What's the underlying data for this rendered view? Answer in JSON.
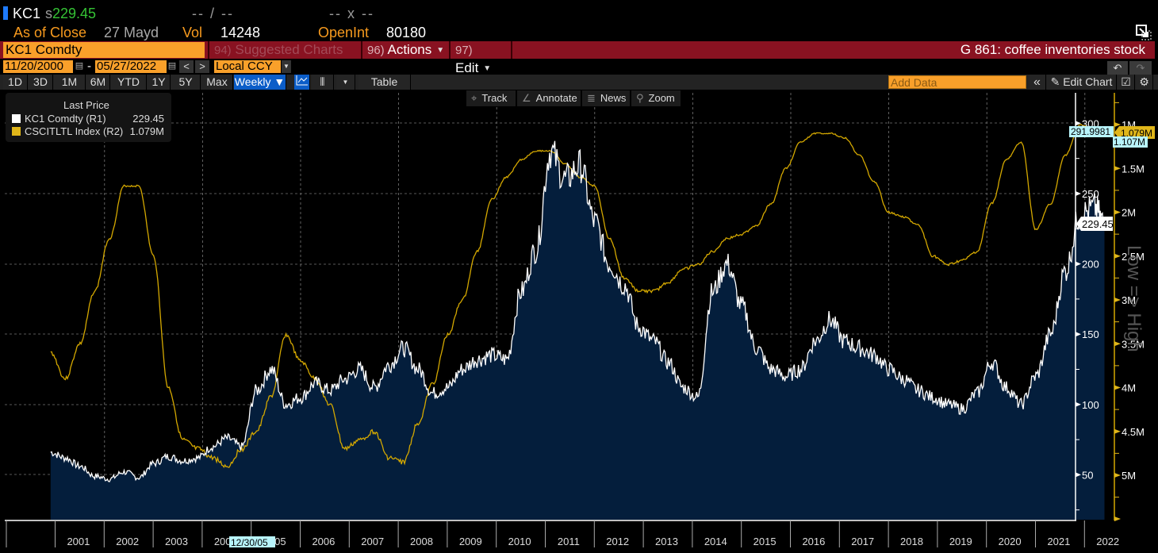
{
  "header": {
    "ticker": "KC1",
    "last_prefix": "s",
    "last_price": "229.45",
    "bid_ask": "-- / --",
    "size": "-- x --",
    "as_of_label": "As of Close",
    "as_of_date": "27 Mayd",
    "vol_label": "Vol",
    "vol_value": "14248",
    "openint_label": "OpenInt",
    "openint_value": "80180"
  },
  "command_bar": {
    "security": "KC1 Comdty",
    "suggested_num": "94)",
    "suggested_label": "Suggested Charts",
    "actions_num": "96)",
    "actions_label": "Actions",
    "edit_num": "97)",
    "edit_label": "Edit",
    "chart_title": "G 861: coffee inventories stock"
  },
  "date_row": {
    "start_date": "11/20/2000",
    "separator": "-",
    "end_date": "05/27/2022",
    "prev": "<",
    "next": ">",
    "currency": "Local CCY"
  },
  "toolbar": {
    "periods": [
      "1D",
      "3D",
      "1M",
      "6M",
      "YTD",
      "1Y",
      "5Y",
      "Max"
    ],
    "frequency": "Weekly ▼",
    "table_label": "Table",
    "add_data_placeholder": "Add Data",
    "edit_chart_label": "Edit Chart",
    "collapse": "«"
  },
  "chart_tools": {
    "track": "Track",
    "annotate": "Annotate",
    "news": "News",
    "zoom": "Zoom"
  },
  "legend": {
    "title": "Last Price",
    "items": [
      {
        "name": "KC1 Comdty  (R1)",
        "value": "229.45",
        "color": "#ffffff"
      },
      {
        "name": "CSCITLTL Index  (R2)",
        "value": "1.079M",
        "color": "#e0b61a"
      }
    ]
  },
  "side_label": "Low => High",
  "crosshair_date": "12/30/05",
  "colors": {
    "price_line": "#ffffff",
    "price_fill": "#041e3c",
    "inventory_line": "#d4a800",
    "accent_orange": "#f9a02a",
    "command_red": "#891221",
    "cyan_tag": "#b8f4fb"
  },
  "chart_data": {
    "type": "line",
    "title": "G 861: coffee inventories stock",
    "xlabel": "",
    "x_tick_labels": [
      "2001",
      "2002",
      "2003",
      "2004",
      "2005",
      "2006",
      "2007",
      "2008",
      "2009",
      "2010",
      "2011",
      "2012",
      "2013",
      "2014",
      "2015",
      "2016",
      "2017",
      "2018",
      "2019",
      "2020",
      "2021",
      "2022"
    ],
    "grid": true,
    "legend_position": "top-left",
    "axes": {
      "R1": {
        "label": "KC1 Comdty",
        "ticks": [
          50,
          100,
          150,
          200,
          250,
          300
        ],
        "range": [
          0,
          300
        ]
      },
      "R2": {
        "label": "CSCITLTL Index",
        "inverted": true,
        "tick_labels": [
          "1M",
          "1.5M",
          "2M",
          "2.5M",
          "3M",
          "3.5M",
          "4M",
          "4.5M",
          "5M"
        ],
        "ticks": [
          1000000,
          1500000,
          2000000,
          2500000,
          3000000,
          3500000,
          4000000,
          4500000,
          5000000
        ],
        "range": [
          5800000,
          600000
        ]
      }
    },
    "tags": {
      "R1_last": "229.45",
      "R1_high": "291.9981",
      "R2_last": "1.079M",
      "R2_high": "1.107M"
    },
    "x": [
      2000.9,
      2001.2,
      2001.5,
      2001.8,
      2002.1,
      2002.4,
      2002.7,
      2003.0,
      2003.3,
      2003.6,
      2003.9,
      2004.2,
      2004.5,
      2004.8,
      2005.1,
      2005.4,
      2005.7,
      2006.0,
      2006.3,
      2006.6,
      2006.9,
      2007.2,
      2007.5,
      2007.8,
      2008.1,
      2008.4,
      2008.7,
      2009.0,
      2009.3,
      2009.6,
      2009.9,
      2010.2,
      2010.5,
      2010.8,
      2011.1,
      2011.4,
      2011.7,
      2012.0,
      2012.3,
      2012.6,
      2012.9,
      2013.2,
      2013.5,
      2013.8,
      2014.1,
      2014.4,
      2014.7,
      2015.0,
      2015.3,
      2015.6,
      2015.9,
      2016.2,
      2016.5,
      2016.8,
      2017.1,
      2017.4,
      2017.7,
      2018.0,
      2018.3,
      2018.6,
      2018.9,
      2019.2,
      2019.5,
      2019.8,
      2020.1,
      2020.4,
      2020.7,
      2021.0,
      2021.3,
      2021.6,
      2021.9,
      2022.2,
      2022.4
    ],
    "series": [
      {
        "name": "KC1 Comdty (R1)",
        "axis": "R1",
        "values": [
          66,
          62,
          56,
          49,
          47,
          52,
          48,
          58,
          63,
          60,
          62,
          70,
          76,
          70,
          110,
          125,
          100,
          105,
          115,
          110,
          118,
          125,
          112,
          128,
          140,
          125,
          108,
          112,
          125,
          132,
          135,
          132,
          180,
          210,
          280,
          260,
          270,
          230,
          200,
          185,
          155,
          145,
          130,
          112,
          105,
          180,
          200,
          170,
          140,
          125,
          120,
          125,
          145,
          160,
          145,
          140,
          135,
          125,
          118,
          110,
          105,
          100,
          97,
          108,
          130,
          112,
          100,
          120,
          150,
          195,
          235,
          240,
          229.45
        ]
      },
      {
        "name": "CSCITLTL Index (R2)",
        "axis": "R2",
        "values": [
          3600000,
          3900000,
          3500000,
          2900000,
          2300000,
          1700000,
          1700000,
          2500000,
          4000000,
          4600000,
          4700000,
          4800000,
          4900000,
          4700000,
          4500000,
          4100000,
          3400000,
          3700000,
          3900000,
          4200000,
          4700000,
          4600000,
          4500000,
          4800000,
          4850000,
          4400000,
          3950000,
          3400000,
          3000000,
          2450000,
          1850000,
          1600000,
          1400000,
          1300000,
          1300000,
          1450000,
          1600000,
          1700000,
          2300000,
          2750000,
          2900000,
          2900000,
          2800000,
          2650000,
          2600000,
          2450000,
          2300000,
          2250000,
          2150000,
          1900000,
          1500000,
          1200000,
          1100000,
          1100000,
          1150000,
          1350000,
          1650000,
          2000000,
          2050000,
          2150000,
          2500000,
          2600000,
          2550000,
          2450000,
          1900000,
          1400000,
          1200000,
          2200000,
          1900000,
          1350000,
          1000000,
          1050000,
          1079000
        ]
      }
    ]
  }
}
